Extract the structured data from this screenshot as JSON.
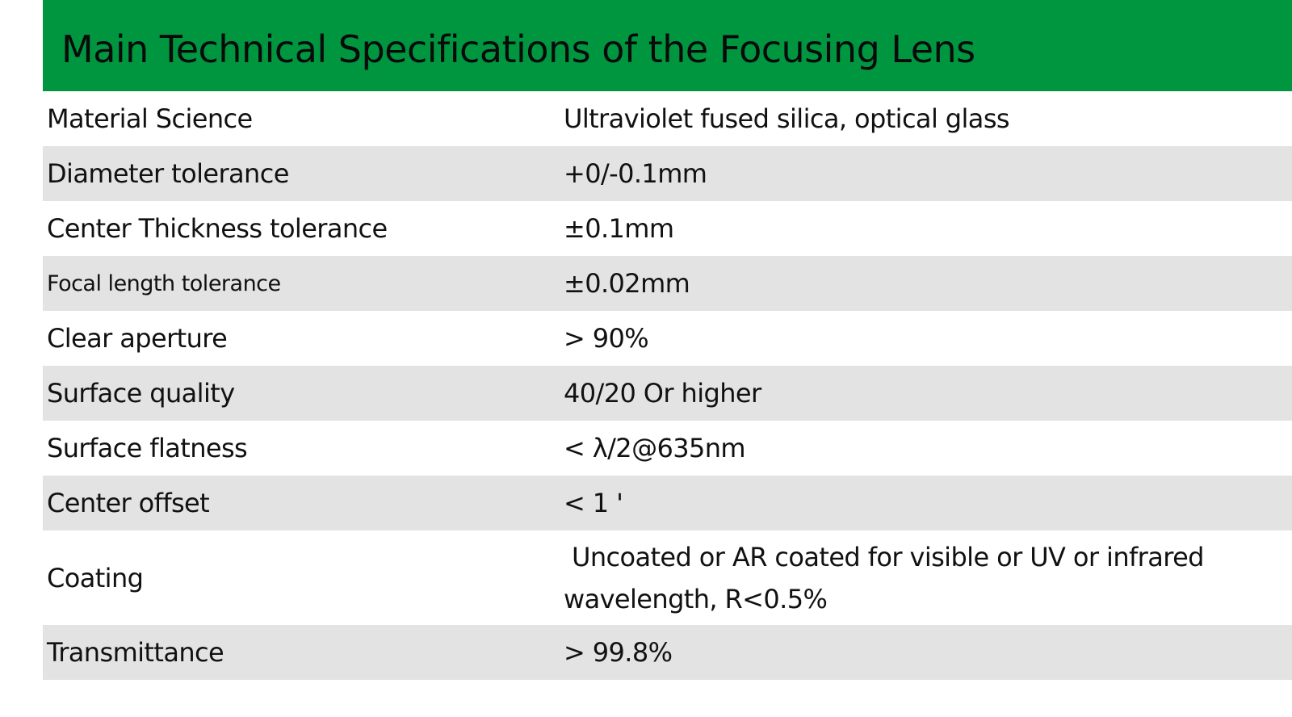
{
  "header": {
    "title": "Main Technical Specifications of the Focusing Lens",
    "background_color": "#00963f"
  },
  "specs": [
    {
      "label": "Material Science",
      "value": "Ultraviolet fused silica, optical glass"
    },
    {
      "label": "Diameter tolerance",
      "value": "+0/-0.1mm"
    },
    {
      "label": "Center Thickness tolerance",
      "value": "±0.1mm"
    },
    {
      "label": "Focal length tolerance",
      "value": "±0.02mm"
    },
    {
      "label": "Clear aperture",
      "value": " > 90%"
    },
    {
      "label": "Surface quality",
      "value": "40/20 Or higher"
    },
    {
      "label": "Surface flatness",
      "value": " < λ/2@635nm"
    },
    {
      "label": "Center offset",
      "value": " < 1 '"
    },
    {
      "label": "Coating",
      "value": "Uncoated or AR coated for visible or UV or infrared wavelength, R<0.5%"
    },
    {
      "label": "Transmittance",
      "value": " > 99.8%"
    }
  ],
  "colors": {
    "row_alt": "#e3e3e3",
    "row_plain": "#ffffff"
  }
}
